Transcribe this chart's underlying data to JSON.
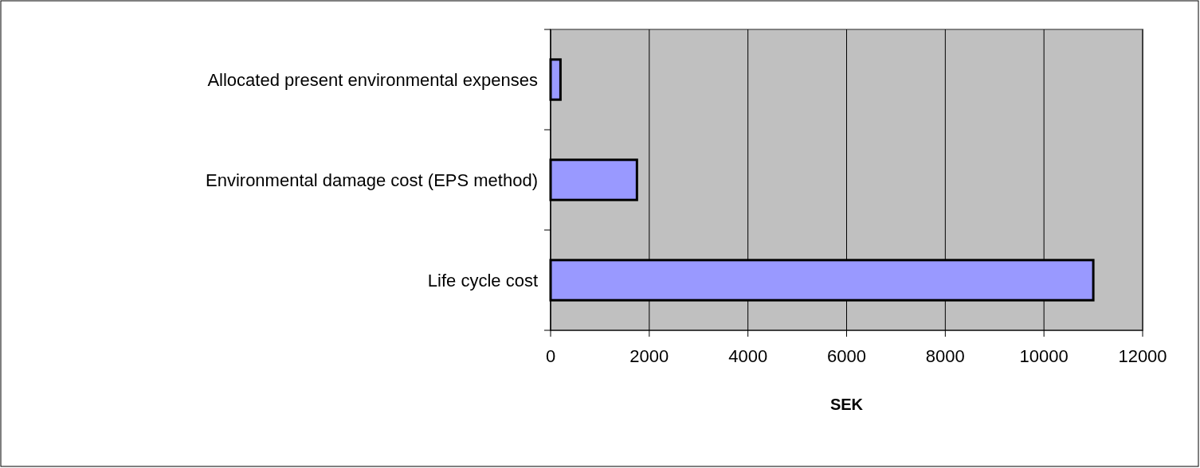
{
  "chart_data": {
    "type": "bar",
    "orientation": "horizontal",
    "categories": [
      "Allocated present environmental expenses",
      "Environmental damage cost (EPS method)",
      "Life cycle cost"
    ],
    "values": [
      200,
      1750,
      11000
    ],
    "color": "#9999ff",
    "xlabel": "SEK",
    "xlim": [
      0,
      12000
    ],
    "xticks": [
      0,
      2000,
      4000,
      6000,
      8000,
      10000,
      12000
    ],
    "grid": "x"
  }
}
